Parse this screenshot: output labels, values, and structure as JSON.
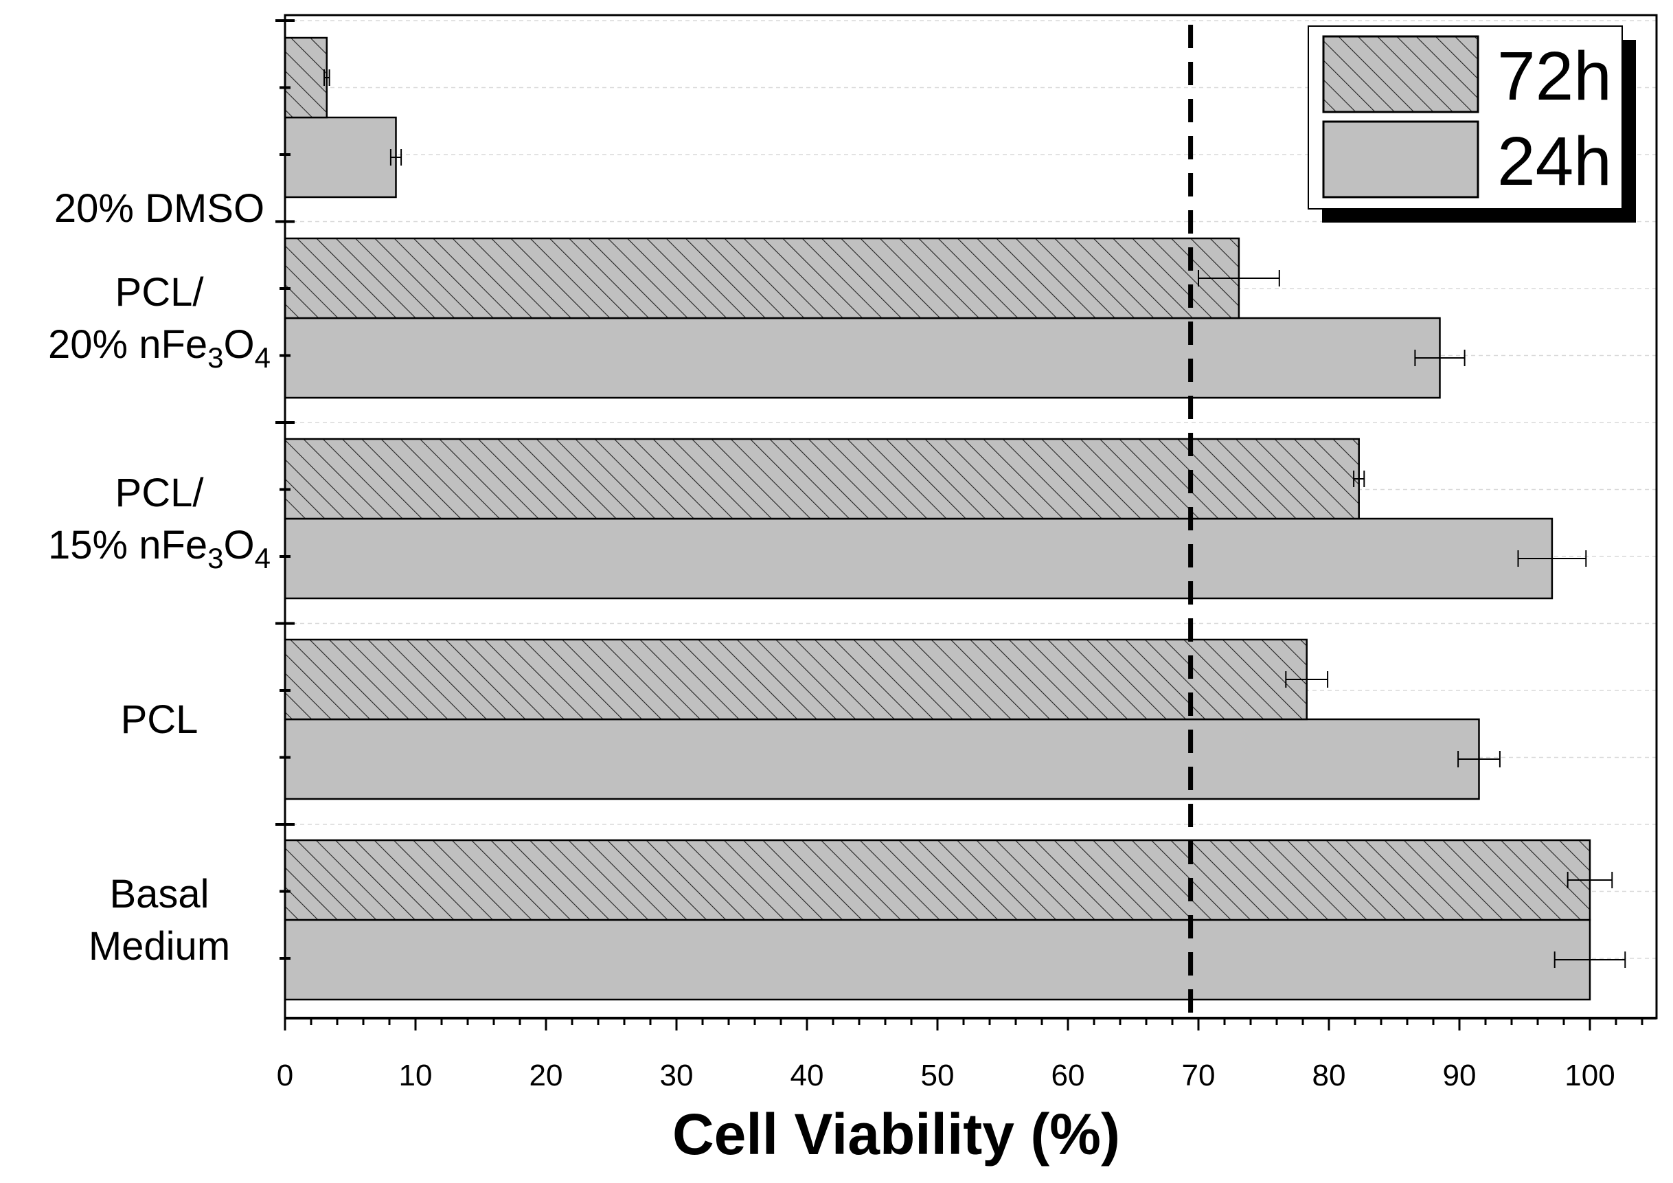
{
  "chart_data": {
    "type": "bar",
    "orientation": "horizontal",
    "title": "",
    "xlabel": "Cell Viability (%)",
    "ylabel": "",
    "xlim": [
      0,
      105
    ],
    "xticks": [
      0,
      10,
      20,
      30,
      40,
      50,
      60,
      70,
      80,
      90,
      100
    ],
    "grid": "dashed horizontal lines",
    "legend_position": "top-right",
    "reference_line": {
      "x": 69.4,
      "style": "dashed"
    },
    "categories": [
      {
        "lines": [
          {
            "parts": [
              {
                "t": "Basal"
              }
            ]
          },
          {
            "parts": [
              {
                "t": "Medium"
              }
            ]
          }
        ]
      },
      {
        "lines": [
          {
            "parts": [
              {
                "t": "PCL"
              }
            ]
          }
        ]
      },
      {
        "lines": [
          {
            "parts": [
              {
                "t": "PCL/"
              }
            ]
          },
          {
            "parts": [
              {
                "t": "15% nFe"
              },
              {
                "t": "3",
                "sub": true
              },
              {
                "t": "O"
              },
              {
                "t": "4",
                "sub": true
              }
            ]
          }
        ]
      },
      {
        "lines": [
          {
            "parts": [
              {
                "t": "PCL/"
              }
            ]
          },
          {
            "parts": [
              {
                "t": "20% nFe"
              },
              {
                "t": "3",
                "sub": true
              },
              {
                "t": "O"
              },
              {
                "t": "4",
                "sub": true
              }
            ]
          }
        ]
      },
      {
        "lines": [
          {
            "parts": [
              {
                "t": "20% DMSO"
              }
            ]
          }
        ]
      }
    ],
    "series": [
      {
        "name": "24h",
        "fill": "#c0c0c0",
        "pattern": "solid",
        "values": [
          100,
          91.5,
          97.1,
          88.5,
          8.5
        ],
        "errors": [
          2.7,
          1.6,
          2.6,
          1.9,
          0.4
        ]
      },
      {
        "name": "72h",
        "fill": "#c0c0c0",
        "pattern": "hatched",
        "values": [
          100,
          78.3,
          82.3,
          73.1,
          3.2
        ],
        "errors": [
          1.7,
          1.6,
          0.4,
          3.1,
          0.2
        ]
      }
    ]
  }
}
